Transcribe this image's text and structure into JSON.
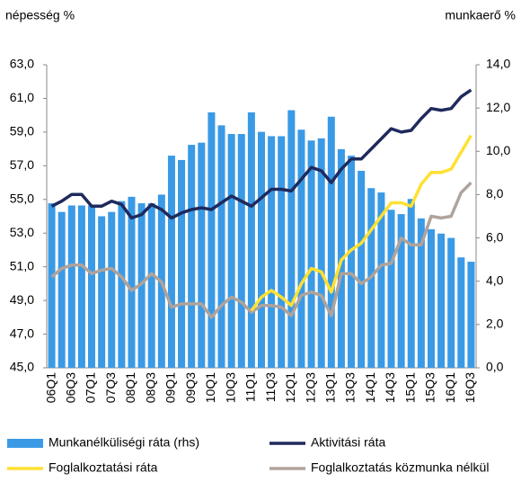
{
  "chart_data": {
    "type": "bar-line",
    "y_label": "népesség %",
    "y2_label": "munkaerő %",
    "categories": [
      "06Q1",
      null,
      "06Q3",
      null,
      "07Q1",
      null,
      "07Q3",
      null,
      "08Q1",
      null,
      "08Q3",
      null,
      "09Q1",
      null,
      "09Q3",
      null,
      "10Q1",
      null,
      "10Q3",
      null,
      "11Q1",
      null,
      "11Q3",
      null,
      "12Q1",
      null,
      "12Q3",
      null,
      "13Q1",
      null,
      "13Q3",
      null,
      "14Q1",
      null,
      "14Q3",
      null,
      "15Q1",
      null,
      "15Q3",
      null,
      "16Q1",
      null,
      "16Q3"
    ],
    "series": [
      {
        "name": "Munkanélküliségi ráta (rhs)",
        "type": "bar",
        "axis": "y2",
        "color": "#3a9ae6",
        "values": [
          7.6,
          7.2,
          7.5,
          7.5,
          7.5,
          7.0,
          7.2,
          7.7,
          7.9,
          7.6,
          7.6,
          8.0,
          9.8,
          9.6,
          10.3,
          10.4,
          11.8,
          11.2,
          10.8,
          10.8,
          11.8,
          10.9,
          10.7,
          10.7,
          11.9,
          11.0,
          10.5,
          10.6,
          11.6,
          10.1,
          9.8,
          9.1,
          8.3,
          8.1,
          7.3,
          7.1,
          7.8,
          6.9,
          6.4,
          6.2,
          6.0,
          5.1,
          4.9
        ]
      },
      {
        "name": "Aktivitási ráta",
        "type": "line",
        "color": "#1f2a5c",
        "values": [
          54.6,
          54.9,
          55.3,
          55.3,
          54.6,
          54.6,
          54.9,
          54.7,
          53.9,
          54.1,
          54.7,
          54.4,
          53.9,
          54.2,
          54.4,
          54.5,
          54.4,
          54.8,
          55.2,
          54.9,
          54.6,
          55.1,
          55.6,
          55.6,
          55.5,
          56.2,
          56.9,
          56.7,
          56.0,
          56.8,
          57.4,
          57.4,
          58.0,
          58.6,
          59.2,
          59.0,
          59.1,
          59.8,
          60.4,
          60.3,
          60.4,
          61.1,
          61.5
        ]
      },
      {
        "name": "Foglalkoztatási ráta",
        "type": "line",
        "color": "#ffe033",
        "values": [
          null,
          null,
          null,
          null,
          null,
          null,
          null,
          null,
          null,
          null,
          null,
          null,
          null,
          null,
          null,
          null,
          null,
          null,
          null,
          null,
          48.4,
          49.2,
          49.6,
          49.2,
          48.7,
          50.0,
          50.9,
          50.7,
          49.5,
          51.4,
          52.0,
          52.4,
          53.2,
          54.0,
          54.8,
          54.8,
          54.6,
          55.9,
          56.6,
          56.6,
          56.8,
          57.8,
          58.8
        ]
      },
      {
        "name": "Foglalkoztatás közmunka nélkül",
        "type": "line",
        "color": "#b0a39b",
        "values": [
          50.4,
          50.9,
          51.1,
          51.1,
          50.6,
          50.8,
          50.9,
          50.4,
          49.6,
          50.0,
          50.6,
          50.1,
          48.6,
          48.8,
          48.8,
          48.8,
          48.0,
          48.7,
          49.2,
          48.9,
          48.3,
          48.7,
          48.7,
          48.6,
          48.1,
          49.3,
          49.5,
          49.3,
          48.1,
          50.6,
          50.6,
          50.0,
          50.4,
          51.1,
          51.2,
          52.7,
          52.3,
          52.3,
          54.0,
          53.9,
          54.0,
          55.4,
          56.0
        ]
      }
    ],
    "ylim": [
      45,
      63
    ],
    "yticks": [
      {
        "value": 45,
        "label": "45,0"
      },
      {
        "value": 47,
        "label": "47,0"
      },
      {
        "value": 49,
        "label": "49,0"
      },
      {
        "value": 51,
        "label": "51,0"
      },
      {
        "value": 53,
        "label": "53,0"
      },
      {
        "value": 55,
        "label": "55,0"
      },
      {
        "value": 57,
        "label": "57,0"
      },
      {
        "value": 59,
        "label": "59,0"
      },
      {
        "value": 61,
        "label": "61,0"
      },
      {
        "value": 63,
        "label": "63,0"
      }
    ],
    "y2lim": [
      0,
      14
    ],
    "y2ticks": [
      {
        "value": 0,
        "label": "0,0"
      },
      {
        "value": 2,
        "label": "2,0"
      },
      {
        "value": 4,
        "label": "4,0"
      },
      {
        "value": 6,
        "label": "6,0"
      },
      {
        "value": 8,
        "label": "8,0"
      },
      {
        "value": 10,
        "label": "10,0"
      },
      {
        "value": 12,
        "label": "12,0"
      },
      {
        "value": 14,
        "label": "14,0"
      }
    ],
    "grid": false
  }
}
